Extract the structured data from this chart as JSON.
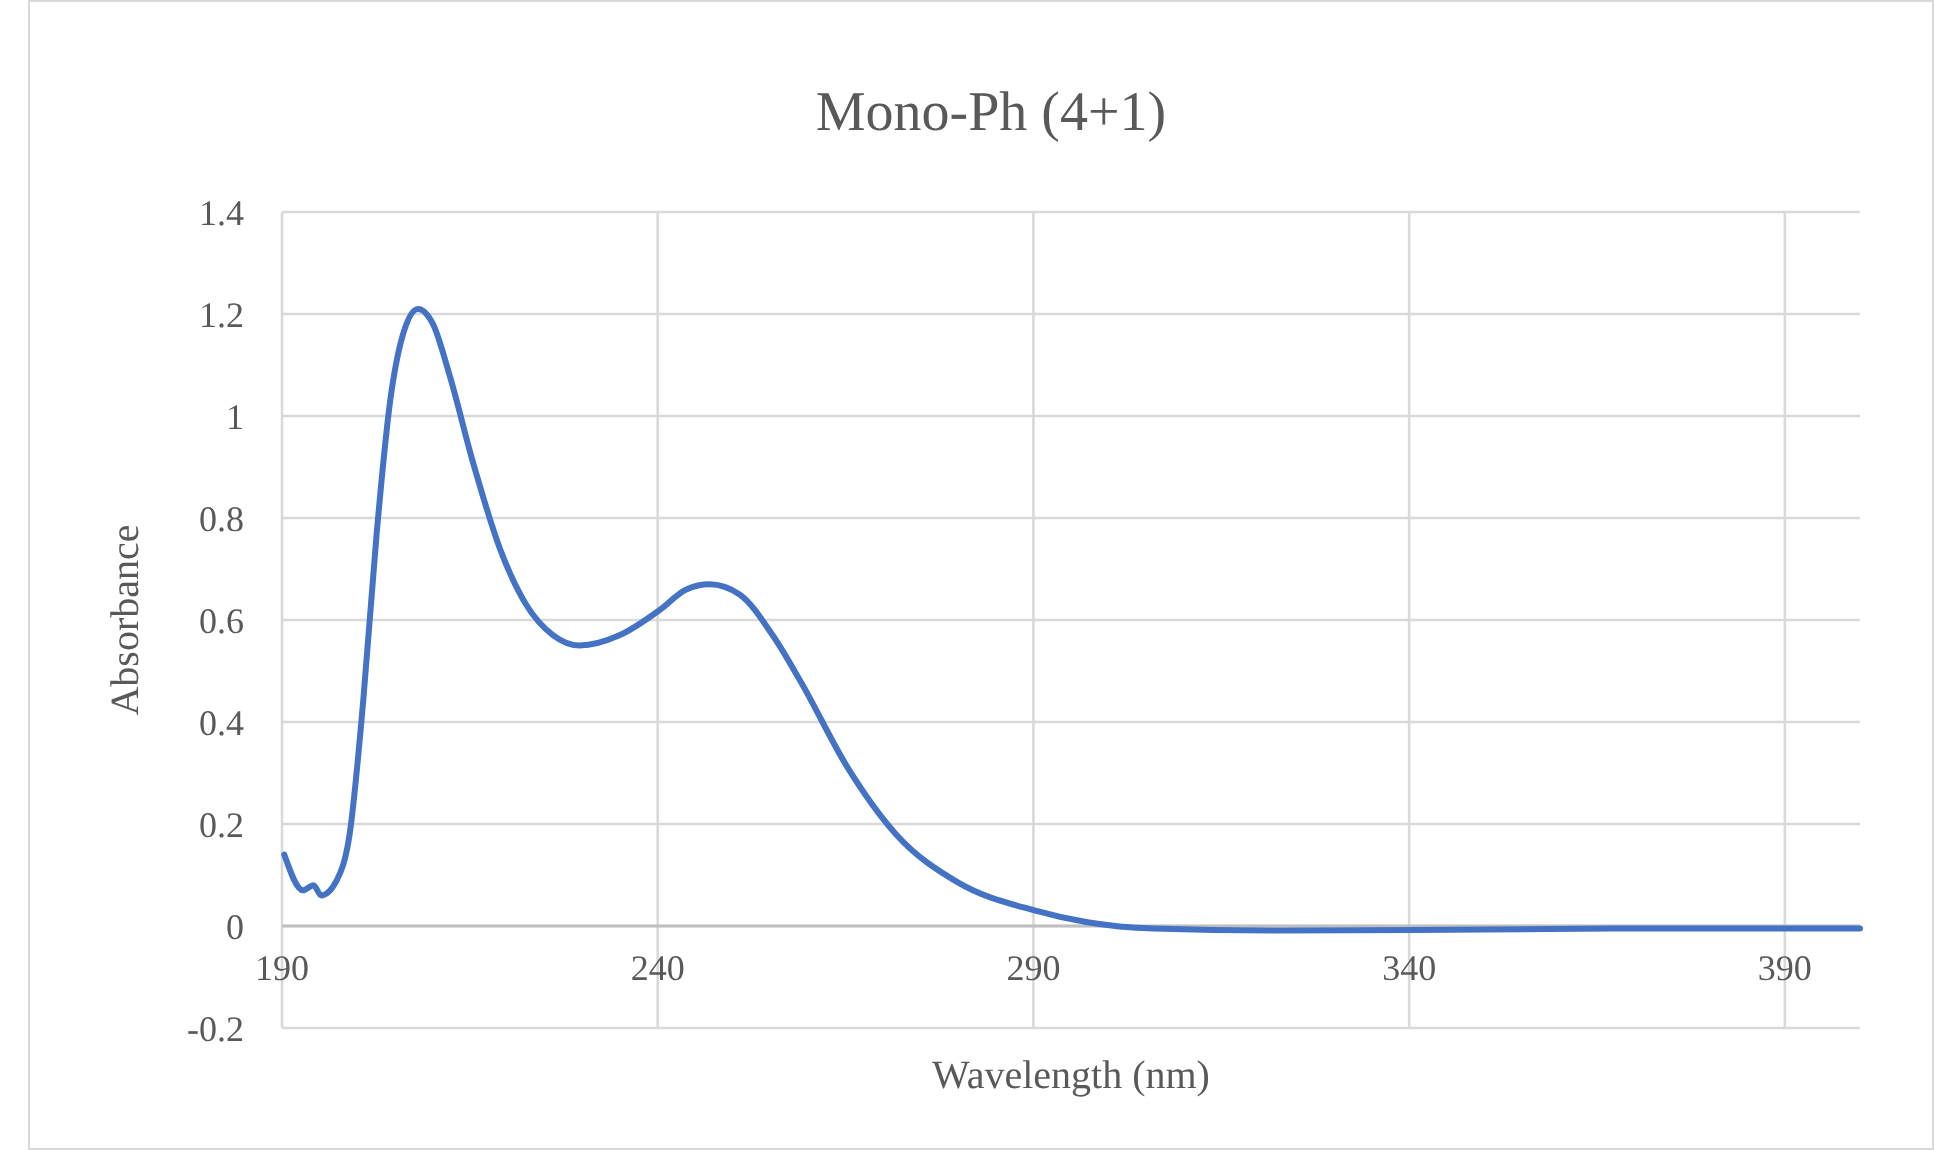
{
  "chart_data": {
    "type": "line",
    "title": "Mono-Ph (4+1)",
    "xlabel": "Wavelength (nm)",
    "ylabel": "Absorbance",
    "xlim": [
      190,
      400
    ],
    "xticks": [
      190,
      240,
      290,
      340,
      390
    ],
    "ylim": [
      -0.2,
      1.4
    ],
    "yticks": [
      -0.2,
      0,
      0.2,
      0.4,
      0.6,
      0.8,
      1,
      1.2,
      1.4
    ],
    "grid": true,
    "marker": "none",
    "line_style": "solid",
    "series": [
      {
        "color": "#4472c4",
        "x": [
          190.3,
          192.8,
          194.2,
          195.2,
          197.3,
          199,
          200.8,
          202.6,
          204.4,
          206.1,
          208.1,
          210.1,
          212.3,
          215.4,
          219,
          222.5,
          226.1,
          229.6,
          234.9,
          240.3,
          243.8,
          246.9,
          250.9,
          255.3,
          259,
          265.3,
          271.7,
          280,
          290,
          297,
          306,
          323,
          350,
          369,
          400
        ],
        "values": [
          0.14,
          0.07,
          0.08,
          0.06,
          0.09,
          0.18,
          0.44,
          0.77,
          1.03,
          1.16,
          1.21,
          1.18,
          1.08,
          0.91,
          0.74,
          0.63,
          0.57,
          0.55,
          0.57,
          0.62,
          0.66,
          0.67,
          0.65,
          0.57,
          0.48,
          0.31,
          0.18,
          0.085,
          0.031,
          0.008,
          -0.005,
          -0.009,
          -0.007,
          -0.005,
          -0.005
        ]
      }
    ]
  }
}
